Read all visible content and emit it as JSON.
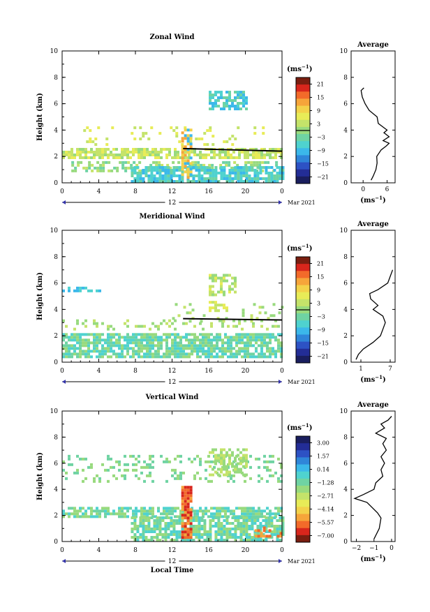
{
  "chart_data": [
    {
      "type": "heatmap",
      "title": "Zonal Wind",
      "ylabel": "Height (km)",
      "ylim": [
        0,
        10
      ],
      "yticks": [
        "0",
        "2",
        "4",
        "6",
        "8",
        "10"
      ],
      "xticks": [
        "0",
        "4",
        "8",
        "12",
        "16",
        "20",
        "0"
      ],
      "day_label": "12",
      "date_label": "Mar 2021",
      "xlim": [
        0,
        24
      ],
      "unit_label": "(ms",
      "unit_sup": "−1",
      "colorbar_ticks": [
        "21",
        "15",
        "9",
        "3",
        "−3",
        "−9",
        "−15",
        "−21"
      ],
      "avg": {
        "title": "Average",
        "xticks": [
          "0",
          "6"
        ],
        "xlim": [
          -3,
          8
        ],
        "yticks": [
          "0",
          "2",
          "4",
          "6",
          "8",
          "10"
        ],
        "unit_label": "(ms",
        "unit_sup": "−1",
        "profile": [
          [
            2.0,
            0.2
          ],
          [
            2.5,
            0.5
          ],
          [
            3.2,
            1.0
          ],
          [
            3.5,
            1.5
          ],
          [
            3.4,
            2.0
          ],
          [
            4.5,
            2.5
          ],
          [
            5.8,
            2.8
          ],
          [
            6.5,
            3.0
          ],
          [
            5.0,
            3.2
          ],
          [
            6.5,
            3.5
          ],
          [
            5.2,
            3.8
          ],
          [
            6.0,
            4.0
          ],
          [
            3.8,
            4.5
          ],
          [
            3.5,
            5.0
          ],
          [
            1.5,
            5.5
          ],
          [
            0.5,
            6.0
          ],
          [
            -0.2,
            6.5
          ],
          [
            -0.5,
            7.0
          ],
          [
            0.2,
            7.2
          ]
        ]
      }
    },
    {
      "type": "heatmap",
      "title": "Meridional Wind",
      "ylabel": "Height (km)",
      "ylim": [
        0,
        10
      ],
      "yticks": [
        "0",
        "2",
        "4",
        "6",
        "8",
        "10"
      ],
      "xticks": [
        "0",
        "4",
        "8",
        "12",
        "16",
        "20",
        "0"
      ],
      "day_label": "12",
      "date_label": "Mar 2021",
      "xlim": [
        0,
        24
      ],
      "unit_label": "(ms",
      "unit_sup": "−1",
      "colorbar_ticks": [
        "21",
        "15",
        "9",
        "3",
        "−3",
        "−9",
        "−15",
        "−21"
      ],
      "avg": {
        "title": "Average",
        "xticks": [
          "1",
          "7"
        ],
        "xlim": [
          -1,
          8
        ],
        "yticks": [
          "0",
          "2",
          "4",
          "6",
          "8",
          "10"
        ],
        "unit_label": "(ms",
        "unit_sup": "−1",
        "profile": [
          [
            0.0,
            0.2
          ],
          [
            0.5,
            0.6
          ],
          [
            1.5,
            1.0
          ],
          [
            3.5,
            1.5
          ],
          [
            5.0,
            2.0
          ],
          [
            5.5,
            2.5
          ],
          [
            6.0,
            3.0
          ],
          [
            5.5,
            3.5
          ],
          [
            3.5,
            4.0
          ],
          [
            4.5,
            4.3
          ],
          [
            3.0,
            4.8
          ],
          [
            2.8,
            5.2
          ],
          [
            4.5,
            5.5
          ],
          [
            6.5,
            6.0
          ],
          [
            7.0,
            6.5
          ],
          [
            7.5,
            7.0
          ]
        ]
      }
    },
    {
      "type": "heatmap",
      "title": "Vertical Wind",
      "ylabel": "Height (km)",
      "xlabel": "Local Time",
      "ylim": [
        0,
        10
      ],
      "yticks": [
        "0",
        "2",
        "4",
        "6",
        "8",
        "10"
      ],
      "xticks": [
        "0",
        "4",
        "8",
        "12",
        "16",
        "20",
        "0"
      ],
      "day_label": "12",
      "date_label": "Mar 2021",
      "xlim": [
        0,
        24
      ],
      "unit_label": "(ms",
      "unit_sup": "−1",
      "colorbar_ticks": [
        "3.00",
        "1.57",
        "0.14",
        "−1.28",
        "−2.71",
        "−4.14",
        "−5.57",
        "−7.00"
      ],
      "avg": {
        "title": "Average",
        "xticks": [
          "−2",
          "−1",
          "0"
        ],
        "xlim": [
          -2.3,
          0.2
        ],
        "yticks": [
          "0",
          "2",
          "4",
          "6",
          "8",
          "10"
        ],
        "unit_label": "(ms",
        "unit_sup": "−1",
        "profile": [
          [
            -1.0,
            0.2
          ],
          [
            -0.7,
            1.0
          ],
          [
            -0.6,
            1.8
          ],
          [
            -0.8,
            2.2
          ],
          [
            -1.4,
            3.0
          ],
          [
            -2.1,
            3.3
          ],
          [
            -1.6,
            3.6
          ],
          [
            -1.0,
            4.0
          ],
          [
            -0.9,
            4.5
          ],
          [
            -0.5,
            5.0
          ],
          [
            -0.6,
            5.5
          ],
          [
            -0.4,
            6.0
          ],
          [
            -0.6,
            6.5
          ],
          [
            -0.3,
            7.0
          ],
          [
            -0.5,
            7.5
          ],
          [
            -0.3,
            7.9
          ],
          [
            -0.9,
            8.3
          ],
          [
            -0.4,
            8.7
          ],
          [
            -0.6,
            9.0
          ],
          [
            -0.2,
            9.3
          ],
          [
            0.0,
            9.6
          ]
        ]
      }
    }
  ]
}
